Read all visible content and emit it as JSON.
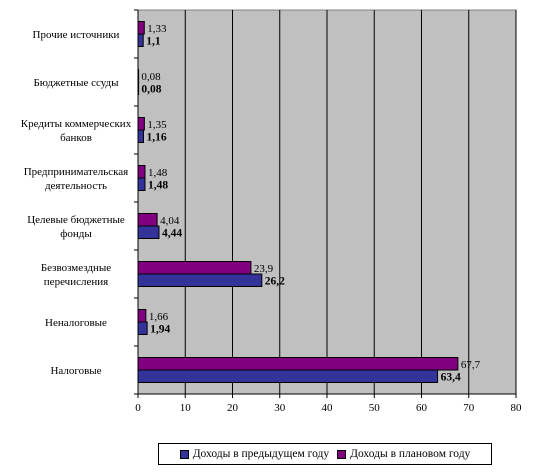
{
  "chart_data": {
    "type": "bar",
    "orientation": "horizontal",
    "categories": [
      "Прочие источники",
      "Бюджетные ссуды",
      "Кредиты коммерческих банков",
      "Предпринимательская деятельность",
      "Целевые бюджетные фонды",
      "Безвозмездные перечисления",
      "Неналоговые",
      "Налоговые"
    ],
    "category_lines": [
      [
        "Прочие источники"
      ],
      [
        "Бюджетные ссуды"
      ],
      [
        "Кредиты коммерческих",
        "банков"
      ],
      [
        "Предпринимательская",
        "деятельность"
      ],
      [
        "Целевые бюджетные",
        "фонды"
      ],
      [
        "Безвозмездные",
        "перечисления"
      ],
      [
        "Неналоговые"
      ],
      [
        "Налоговые"
      ]
    ],
    "series": [
      {
        "name": "Доходы в предыдущем году",
        "color": "#333399",
        "values": [
          1.1,
          0.08,
          1.16,
          1.48,
          4.44,
          26.2,
          1.94,
          63.4
        ],
        "labels": [
          "1,1",
          "0,08",
          "1,16",
          "1,48",
          "4,44",
          "26,2",
          "1,94",
          "63,4"
        ]
      },
      {
        "name": "Доходы в плановом году",
        "color": "#800080",
        "values": [
          1.33,
          0.08,
          1.35,
          1.48,
          4.04,
          23.9,
          1.66,
          67.7
        ],
        "labels": [
          "1,33",
          "0,08",
          "1,35",
          "1,48",
          "4,04",
          "23,9",
          "1,66",
          "67,7"
        ]
      }
    ],
    "xlim": [
      0,
      80
    ],
    "xticks": [
      0,
      10,
      20,
      30,
      40,
      50,
      60,
      70,
      80
    ],
    "plot_background": "#c0c0c0",
    "grid": true,
    "legend_position": "bottom"
  }
}
